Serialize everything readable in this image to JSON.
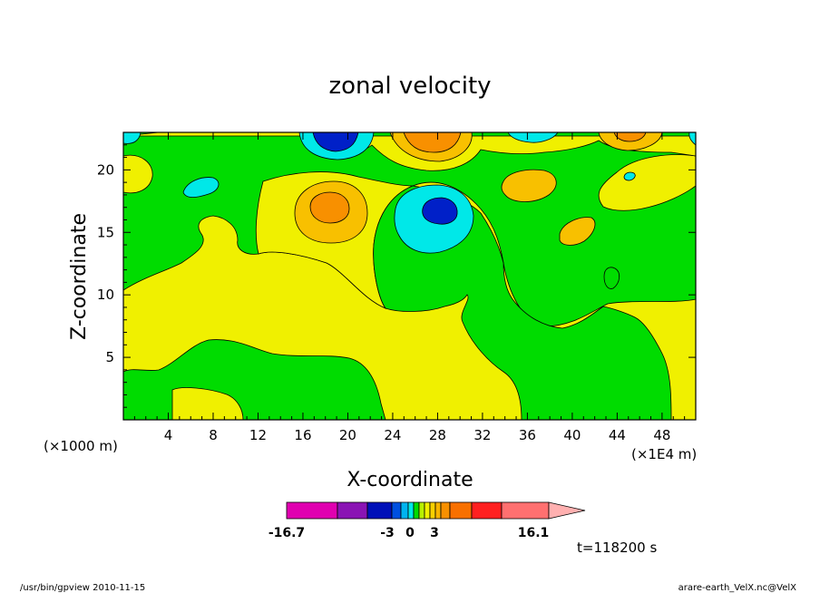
{
  "chart_data": {
    "type": "contour",
    "title": "zonal velocity",
    "xlabel": "X-coordinate",
    "ylabel": "Z-coordinate",
    "x_ticks": [
      "4",
      "8",
      "12",
      "16",
      "20",
      "24",
      "28",
      "32",
      "36",
      "40",
      "44",
      "48"
    ],
    "x_tick_values": [
      4,
      8,
      12,
      16,
      20,
      24,
      28,
      32,
      36,
      40,
      44,
      48
    ],
    "y_ticks": [
      "5",
      "10",
      "15",
      "20"
    ],
    "y_tick_values": [
      5,
      10,
      15,
      20
    ],
    "xlim": [
      0,
      51
    ],
    "ylim": [
      0,
      23
    ],
    "x_unit_left": "(×1000 m)",
    "x_unit_right": "(×1E4 m)",
    "time_label": "t=118200 s",
    "colorbar": {
      "tick_labels": [
        "-16.7",
        "-3",
        "0",
        "3",
        "16.1"
      ],
      "min": -16.7,
      "max": 16.1,
      "colors": [
        "#e000b0",
        "#8a14b4",
        "#0010b8",
        "#0050e0",
        "#00b4f0",
        "#00e8e8",
        "#00dc00",
        "#b8f000",
        "#f0f000",
        "#f8d000",
        "#f8b400",
        "#f89000",
        "#f87000",
        "#ff2020",
        "#ff7070",
        "#ffb0b0"
      ]
    },
    "features": [
      {
        "x": 18.5,
        "z": 22.2,
        "value": -8,
        "kind": "minimum"
      },
      {
        "x": 28.0,
        "z": 16.5,
        "value": -10,
        "kind": "minimum"
      },
      {
        "x": 18.0,
        "z": 17.0,
        "value": 8,
        "kind": "maximum"
      },
      {
        "x": 28.0,
        "z": 22.0,
        "value": 8,
        "kind": "maximum"
      },
      {
        "x": 45.0,
        "z": 22.0,
        "value": 8,
        "kind": "maximum"
      },
      {
        "x": 8.0,
        "z": 18.5,
        "value": -3,
        "kind": "minimum"
      },
      {
        "x": 37.0,
        "z": 18.5,
        "value": 4,
        "kind": "maximum"
      },
      {
        "x": 40.0,
        "z": 15.0,
        "value": 4,
        "kind": "maximum"
      }
    ]
  },
  "footer": {
    "left": "/usr/bin/gpview   2010-11-15",
    "right": "arare-earth_VelX.nc@VelX"
  }
}
